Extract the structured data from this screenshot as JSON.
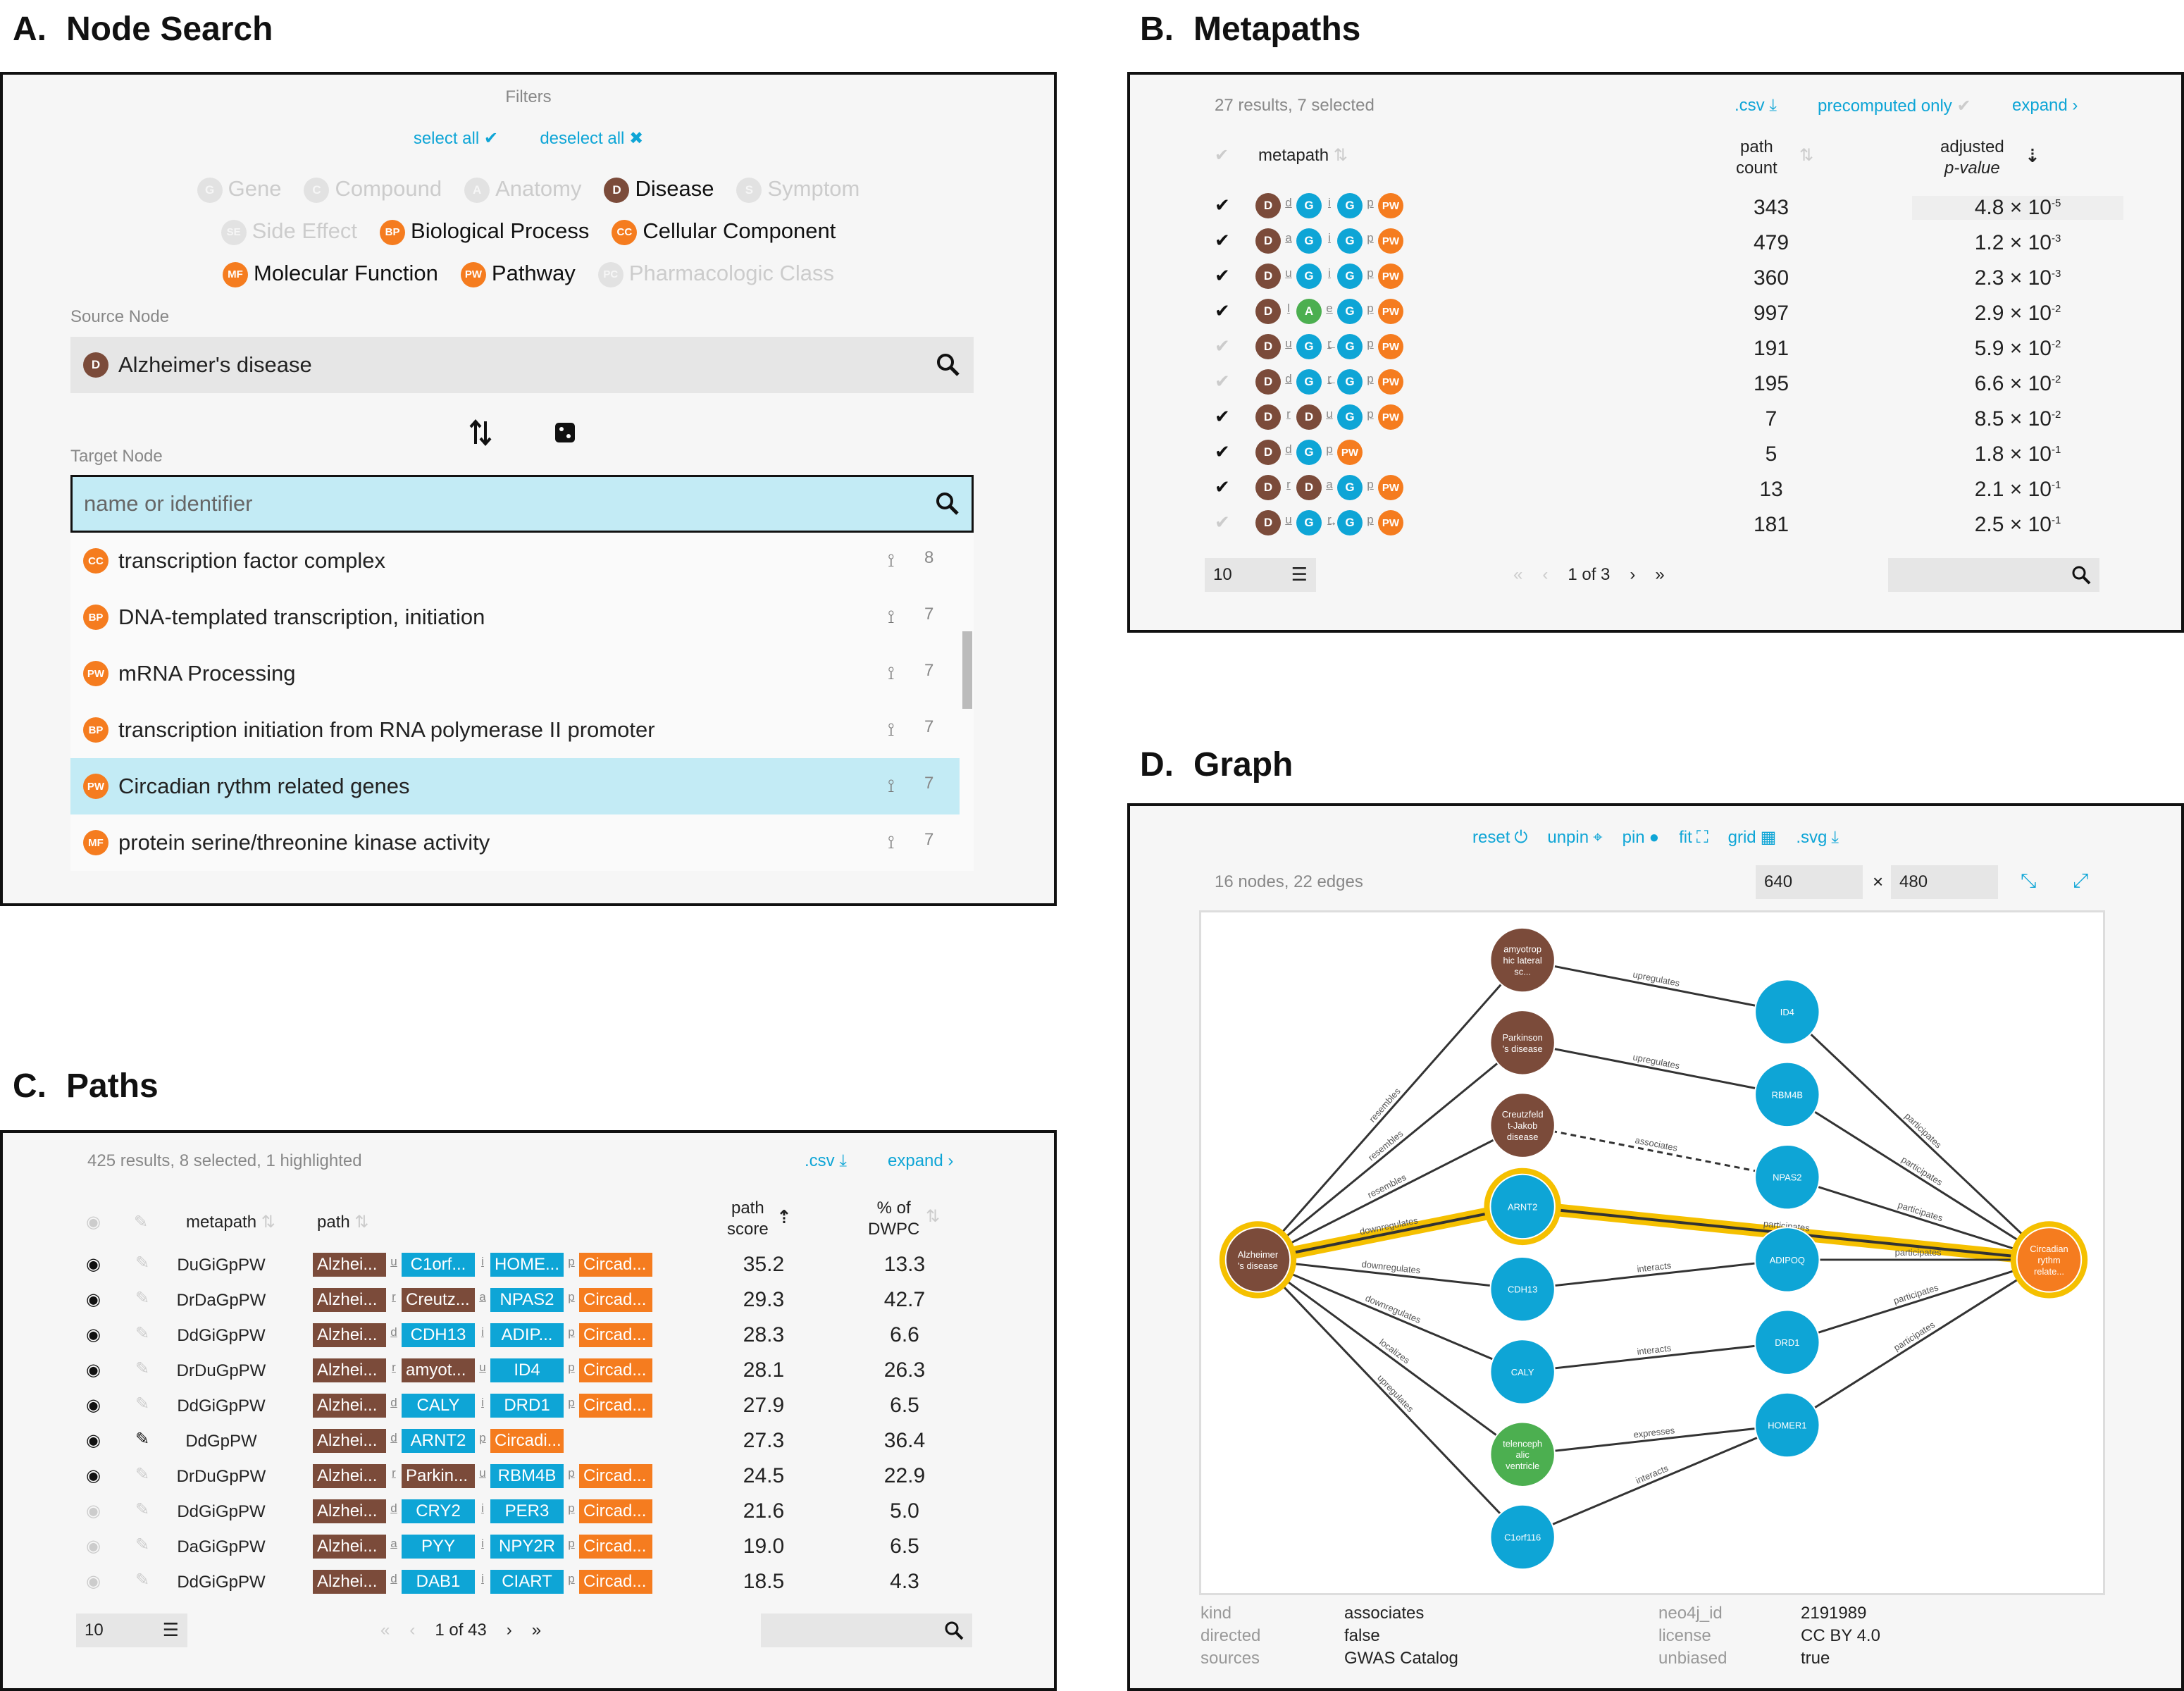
{
  "panels": {
    "a": {
      "letter": "A.",
      "title": "Node Search"
    },
    "b": {
      "letter": "B.",
      "title": "Metapaths"
    },
    "c": {
      "letter": "C.",
      "title": "Paths"
    },
    "d": {
      "letter": "D.",
      "title": "Graph"
    }
  },
  "node_search": {
    "filters_label": "Filters",
    "select_all": "select all",
    "deselect_all": "deselect all",
    "filters": [
      {
        "badge": "G",
        "label": "Gene",
        "active": false
      },
      {
        "badge": "C",
        "label": "Compound",
        "active": false
      },
      {
        "badge": "A",
        "label": "Anatomy",
        "active": false
      },
      {
        "badge": "D",
        "label": "Disease",
        "active": true
      },
      {
        "badge": "S",
        "label": "Symptom",
        "active": false
      },
      {
        "badge": "SE",
        "label": "Side Effect",
        "active": false
      },
      {
        "badge": "BP",
        "label": "Biological Process",
        "active": true
      },
      {
        "badge": "CC",
        "label": "Cellular Component",
        "active": true
      },
      {
        "badge": "MF",
        "label": "Molecular Function",
        "active": true
      },
      {
        "badge": "PW",
        "label": "Pathway",
        "active": true
      },
      {
        "badge": "PC",
        "label": "Pharmacologic Class",
        "active": false
      }
    ],
    "source_label": "Source Node",
    "source_value": "Alzheimer's disease",
    "source_badge": "D",
    "target_label": "Target Node",
    "target_placeholder": "name or identifier",
    "results": [
      {
        "badge": "CC",
        "label": "transcription factor complex",
        "count": "8"
      },
      {
        "badge": "BP",
        "label": "DNA-templated transcription, initiation",
        "count": "7"
      },
      {
        "badge": "PW",
        "label": "mRNA Processing",
        "count": "7"
      },
      {
        "badge": "BP",
        "label": "transcription initiation from RNA polymerase II promoter",
        "count": "7"
      },
      {
        "badge": "PW",
        "label": "Circadian rythm related genes",
        "count": "7",
        "highlight": true
      },
      {
        "badge": "MF",
        "label": "protein serine/threonine kinase activity",
        "count": "7"
      }
    ]
  },
  "metapaths": {
    "summary": "27 results, 7 selected",
    "csv": ".csv",
    "precomputed": "precomputed only",
    "expand": "expand",
    "col_metapath": "metapath",
    "col_count_1": "path",
    "col_count_2": "count",
    "col_p_1": "adjusted",
    "col_p_2": "p-value",
    "rows": [
      {
        "checked": true,
        "nodes": [
          "D",
          "G",
          "G",
          "PW"
        ],
        "rels": [
          "d",
          "i",
          "p"
        ],
        "arrows": [
          "",
          "",
          ""
        ],
        "count": "343",
        "p_base": "4.8 × 10",
        "p_exp": "-5"
      },
      {
        "checked": true,
        "nodes": [
          "D",
          "G",
          "G",
          "PW"
        ],
        "rels": [
          "a",
          "i",
          "p"
        ],
        "arrows": [
          "",
          "",
          ""
        ],
        "count": "479",
        "p_base": "1.2 × 10",
        "p_exp": "-3"
      },
      {
        "checked": true,
        "nodes": [
          "D",
          "G",
          "G",
          "PW"
        ],
        "rels": [
          "u",
          "i",
          "p"
        ],
        "arrows": [
          "",
          "",
          ""
        ],
        "count": "360",
        "p_base": "2.3 × 10",
        "p_exp": "-3"
      },
      {
        "checked": true,
        "nodes": [
          "D",
          "A",
          "G",
          "PW"
        ],
        "rels": [
          "l",
          "e",
          "p"
        ],
        "arrows": [
          "",
          "",
          ""
        ],
        "count": "997",
        "p_base": "2.9 × 10",
        "p_exp": "-2"
      },
      {
        "checked": false,
        "nodes": [
          "D",
          "G",
          "G",
          "PW"
        ],
        "rels": [
          "u",
          "r",
          "p"
        ],
        "arrows": [
          "",
          "←",
          ""
        ],
        "count": "191",
        "p_base": "5.9 × 10",
        "p_exp": "-2"
      },
      {
        "checked": false,
        "nodes": [
          "D",
          "G",
          "G",
          "PW"
        ],
        "rels": [
          "d",
          "r",
          "p"
        ],
        "arrows": [
          "",
          "←",
          ""
        ],
        "count": "195",
        "p_base": "6.6 × 10",
        "p_exp": "-2"
      },
      {
        "checked": true,
        "nodes": [
          "D",
          "D",
          "G",
          "PW"
        ],
        "rels": [
          "r",
          "u",
          "p"
        ],
        "arrows": [
          "",
          "",
          ""
        ],
        "count": "7",
        "p_base": "8.5 × 10",
        "p_exp": "-2"
      },
      {
        "checked": true,
        "nodes": [
          "D",
          "G",
          "PW"
        ],
        "rels": [
          "d",
          "p"
        ],
        "arrows": [
          "",
          ""
        ],
        "count": "5",
        "p_base": "1.8 × 10",
        "p_exp": "-1"
      },
      {
        "checked": true,
        "nodes": [
          "D",
          "D",
          "G",
          "PW"
        ],
        "rels": [
          "r",
          "a",
          "p"
        ],
        "arrows": [
          "",
          "",
          ""
        ],
        "count": "13",
        "p_base": "2.1 × 10",
        "p_exp": "-1"
      },
      {
        "checked": false,
        "nodes": [
          "D",
          "G",
          "G",
          "PW"
        ],
        "rels": [
          "u",
          "r",
          "p"
        ],
        "arrows": [
          "",
          "→",
          ""
        ],
        "count": "181",
        "p_base": "2.5 × 10",
        "p_exp": "-1"
      }
    ],
    "per_page": "10",
    "pager": "1 of 3"
  },
  "paths": {
    "summary": "425 results, 8 selected, 1 highlighted",
    "csv": ".csv",
    "expand": "expand",
    "col_metapath": "metapath",
    "col_path": "path",
    "col_score_1": "path",
    "col_score_2": "score",
    "col_dwpc_1": "% of",
    "col_dwpc_2": "DWPC",
    "rows": [
      {
        "visible": true,
        "pinned": false,
        "metapath": "DuGiGpPW",
        "nodes": [
          {
            "t": "D",
            "l": "Alzhei..."
          },
          {
            "t": "G",
            "l": "C1orf..."
          },
          {
            "t": "G",
            "l": "HOME..."
          },
          {
            "t": "PW",
            "l": "Circad..."
          }
        ],
        "rels": [
          "u",
          "i",
          "p"
        ],
        "score": "35.2",
        "dwpc": "13.3"
      },
      {
        "visible": true,
        "pinned": false,
        "metapath": "DrDaGpPW",
        "nodes": [
          {
            "t": "D",
            "l": "Alzhei..."
          },
          {
            "t": "D",
            "l": "Creutz..."
          },
          {
            "t": "G",
            "l": "NPAS2"
          },
          {
            "t": "PW",
            "l": "Circad..."
          }
        ],
        "rels": [
          "r",
          "a",
          "p"
        ],
        "score": "29.3",
        "dwpc": "42.7"
      },
      {
        "visible": true,
        "pinned": false,
        "metapath": "DdGiGpPW",
        "nodes": [
          {
            "t": "D",
            "l": "Alzhei..."
          },
          {
            "t": "G",
            "l": "CDH13"
          },
          {
            "t": "G",
            "l": "ADIP..."
          },
          {
            "t": "PW",
            "l": "Circad..."
          }
        ],
        "rels": [
          "d",
          "i",
          "p"
        ],
        "score": "28.3",
        "dwpc": "6.6"
      },
      {
        "visible": true,
        "pinned": false,
        "metapath": "DrDuGpPW",
        "nodes": [
          {
            "t": "D",
            "l": "Alzhei..."
          },
          {
            "t": "D",
            "l": "amyot..."
          },
          {
            "t": "G",
            "l": "ID4"
          },
          {
            "t": "PW",
            "l": "Circad..."
          }
        ],
        "rels": [
          "r",
          "u",
          "p"
        ],
        "score": "28.1",
        "dwpc": "26.3"
      },
      {
        "visible": true,
        "pinned": false,
        "metapath": "DdGiGpPW",
        "nodes": [
          {
            "t": "D",
            "l": "Alzhei..."
          },
          {
            "t": "G",
            "l": "CALY"
          },
          {
            "t": "G",
            "l": "DRD1"
          },
          {
            "t": "PW",
            "l": "Circad..."
          }
        ],
        "rels": [
          "d",
          "i",
          "p"
        ],
        "score": "27.9",
        "dwpc": "6.5"
      },
      {
        "visible": true,
        "pinned": true,
        "metapath": "DdGpPW",
        "nodes": [
          {
            "t": "D",
            "l": "Alzhei..."
          },
          {
            "t": "G",
            "l": "ARNT2"
          },
          {
            "t": "PW",
            "l": "Circadi..."
          }
        ],
        "rels": [
          "d",
          "p"
        ],
        "score": "27.3",
        "dwpc": "36.4"
      },
      {
        "visible": true,
        "pinned": false,
        "metapath": "DrDuGpPW",
        "nodes": [
          {
            "t": "D",
            "l": "Alzhei..."
          },
          {
            "t": "D",
            "l": "Parkin..."
          },
          {
            "t": "G",
            "l": "RBM4B"
          },
          {
            "t": "PW",
            "l": "Circad..."
          }
        ],
        "rels": [
          "r",
          "u",
          "p"
        ],
        "score": "24.5",
        "dwpc": "22.9"
      },
      {
        "visible": false,
        "pinned": false,
        "metapath": "DdGiGpPW",
        "nodes": [
          {
            "t": "D",
            "l": "Alzhei..."
          },
          {
            "t": "G",
            "l": "CRY2"
          },
          {
            "t": "G",
            "l": "PER3"
          },
          {
            "t": "PW",
            "l": "Circad..."
          }
        ],
        "rels": [
          "d",
          "i",
          "p"
        ],
        "score": "21.6",
        "dwpc": "5.0"
      },
      {
        "visible": false,
        "pinned": false,
        "metapath": "DaGiGpPW",
        "nodes": [
          {
            "t": "D",
            "l": "Alzhei..."
          },
          {
            "t": "G",
            "l": "PYY"
          },
          {
            "t": "G",
            "l": "NPY2R"
          },
          {
            "t": "PW",
            "l": "Circad..."
          }
        ],
        "rels": [
          "a",
          "i",
          "p"
        ],
        "score": "19.0",
        "dwpc": "6.5"
      },
      {
        "visible": false,
        "pinned": false,
        "metapath": "DdGiGpPW",
        "nodes": [
          {
            "t": "D",
            "l": "Alzhei..."
          },
          {
            "t": "G",
            "l": "DAB1"
          },
          {
            "t": "G",
            "l": "CIART"
          },
          {
            "t": "PW",
            "l": "Circad..."
          }
        ],
        "rels": [
          "d",
          "i",
          "p"
        ],
        "score": "18.5",
        "dwpc": "4.3"
      }
    ],
    "per_page": "10",
    "pager": "1 of 43"
  },
  "graph": {
    "toolbar": [
      "reset",
      "unpin",
      "pin",
      "fit",
      "grid",
      ".svg"
    ],
    "summary": "16 nodes, 22 edges",
    "width": "640",
    "height": "480",
    "times": "×",
    "nodes": [
      {
        "id": "alz",
        "label": [
          "Alzheimer",
          "'s disease"
        ],
        "type": "D",
        "ring": true
      },
      {
        "id": "amy",
        "label": [
          "amyotrop",
          "hic lateral",
          "sc..."
        ],
        "type": "D"
      },
      {
        "id": "park",
        "label": [
          "Parkinson",
          "'s disease"
        ],
        "type": "D"
      },
      {
        "id": "creu",
        "label": [
          "Creutzfeld",
          "t-Jakob",
          "disease"
        ],
        "type": "D"
      },
      {
        "id": "arnt2",
        "label": [
          "ARNT2"
        ],
        "type": "G",
        "ring": true
      },
      {
        "id": "cdh13",
        "label": [
          "CDH13"
        ],
        "type": "G"
      },
      {
        "id": "caly",
        "label": [
          "CALY"
        ],
        "type": "G"
      },
      {
        "id": "tele",
        "label": [
          "telenceph",
          "alic",
          "ventricle"
        ],
        "type": "A"
      },
      {
        "id": "c1orf",
        "label": [
          "C1orf116"
        ],
        "type": "G"
      },
      {
        "id": "id4",
        "label": [
          "ID4"
        ],
        "type": "G"
      },
      {
        "id": "rbm4b",
        "label": [
          "RBM4B"
        ],
        "type": "G"
      },
      {
        "id": "npas2",
        "label": [
          "NPAS2"
        ],
        "type": "G"
      },
      {
        "id": "adipoq",
        "label": [
          "ADIPOQ"
        ],
        "type": "G"
      },
      {
        "id": "drd1",
        "label": [
          "DRD1"
        ],
        "type": "G"
      },
      {
        "id": "homer1",
        "label": [
          "HOMER1"
        ],
        "type": "G"
      },
      {
        "id": "circ",
        "label": [
          "Circadian",
          "rythm",
          "relate..."
        ],
        "type": "PW",
        "ring": true
      }
    ],
    "edges": [
      {
        "s": "alz",
        "t": "amy",
        "label": "resembles"
      },
      {
        "s": "alz",
        "t": "park",
        "label": "resembles"
      },
      {
        "s": "alz",
        "t": "creu",
        "label": "resembles"
      },
      {
        "s": "alz",
        "t": "arnt2",
        "label": "downregulates",
        "hl": true
      },
      {
        "s": "alz",
        "t": "cdh13",
        "label": "downregulates"
      },
      {
        "s": "alz",
        "t": "caly",
        "label": "downregulates"
      },
      {
        "s": "alz",
        "t": "tele",
        "label": "localizes"
      },
      {
        "s": "alz",
        "t": "c1orf",
        "label": "upregulates"
      },
      {
        "s": "amy",
        "t": "id4",
        "label": "upregulates"
      },
      {
        "s": "park",
        "t": "rbm4b",
        "label": "upregulates"
      },
      {
        "s": "creu",
        "t": "npas2",
        "label": "associates",
        "dashed": true
      },
      {
        "s": "arnt2",
        "t": "circ",
        "label": "participates",
        "hl": true
      },
      {
        "s": "cdh13",
        "t": "adipoq",
        "label": "interacts"
      },
      {
        "s": "caly",
        "t": "drd1",
        "label": "interacts"
      },
      {
        "s": "tele",
        "t": "homer1",
        "label": "expresses"
      },
      {
        "s": "c1orf",
        "t": "homer1",
        "label": "interacts"
      },
      {
        "s": "id4",
        "t": "circ",
        "label": "participates"
      },
      {
        "s": "rbm4b",
        "t": "circ",
        "label": "participates"
      },
      {
        "s": "npas2",
        "t": "circ",
        "label": "participates"
      },
      {
        "s": "adipoq",
        "t": "circ",
        "label": "participates"
      },
      {
        "s": "drd1",
        "t": "circ",
        "label": "participates"
      },
      {
        "s": "homer1",
        "t": "circ",
        "label": "participates"
      }
    ],
    "info": {
      "kind_k": "kind",
      "kind_v": "associates",
      "directed_k": "directed",
      "directed_v": "false",
      "sources_k": "sources",
      "sources_v": "GWAS Catalog",
      "neo_k": "neo4j_id",
      "neo_v": "2191989",
      "license_k": "license",
      "license_v": "CC BY 4.0",
      "unbiased_k": "unbiased",
      "unbiased_v": "true"
    }
  },
  "colors": {
    "D": "#7b4b3a",
    "G": "#0ea5d6",
    "A": "#4caf50",
    "PW": "#f57c1f",
    "highlight": "#f5c000"
  }
}
